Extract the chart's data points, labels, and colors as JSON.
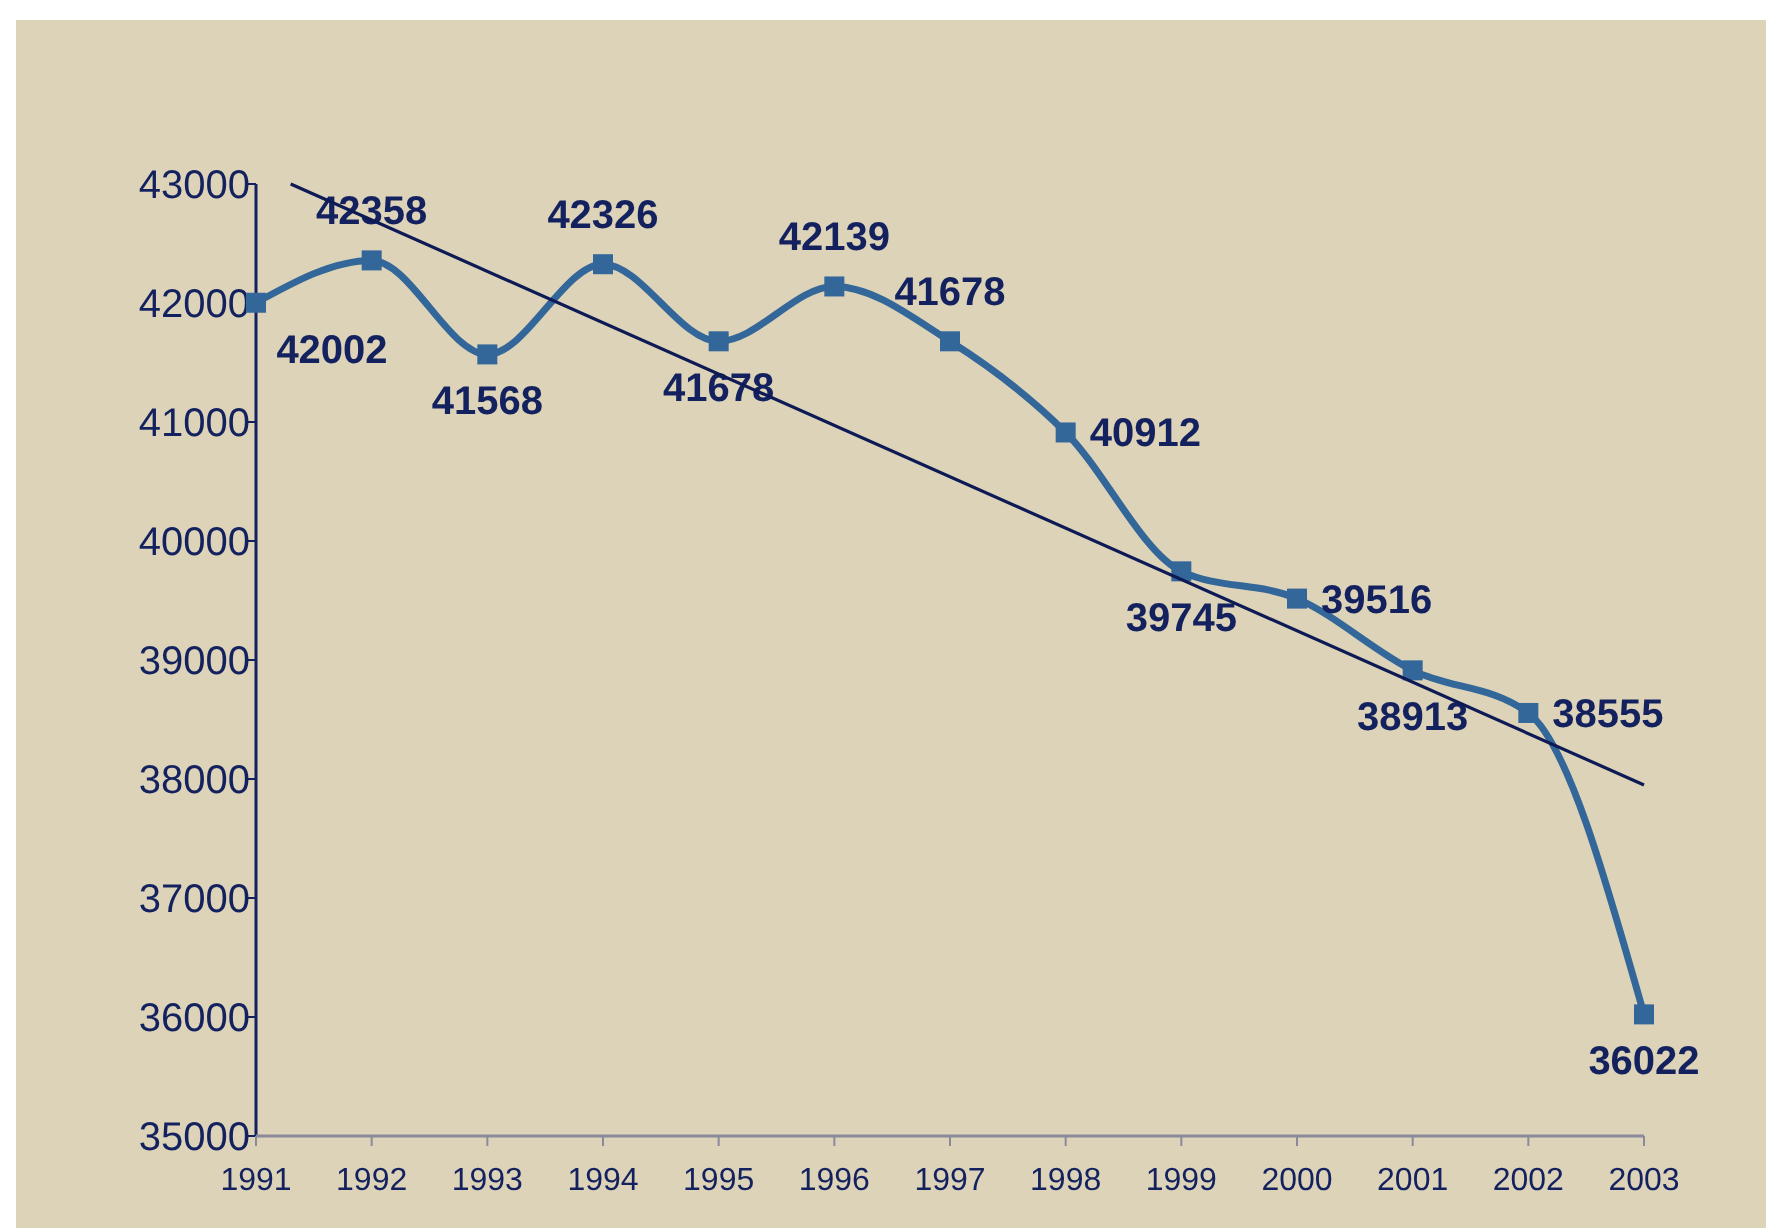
{
  "chart_data": {
    "type": "line",
    "x": [
      1991,
      1992,
      1993,
      1994,
      1995,
      1996,
      1997,
      1998,
      1999,
      2000,
      2001,
      2002,
      2003
    ],
    "series": [
      {
        "color": "#336699",
        "marker": "square",
        "values": [
          42002,
          42358,
          41568,
          42326,
          41678,
          42139,
          41678,
          40912,
          39745,
          39516,
          38913,
          38555,
          36022
        ],
        "data_labels": true
      },
      {
        "color": "#0d1a55",
        "marker": "none",
        "x": [
          1991.3,
          2003
        ],
        "values": [
          43000,
          37950
        ]
      }
    ],
    "xlim": [
      1991,
      2003
    ],
    "xticks": [
      1991,
      1992,
      1993,
      1994,
      1995,
      1996,
      1997,
      1998,
      1999,
      2000,
      2001,
      2002,
      2003
    ],
    "ylim": [
      35000,
      43000
    ],
    "yticks": [
      35000,
      36000,
      37000,
      38000,
      39000,
      40000,
      41000,
      42000,
      43000
    ],
    "grid": false
  }
}
